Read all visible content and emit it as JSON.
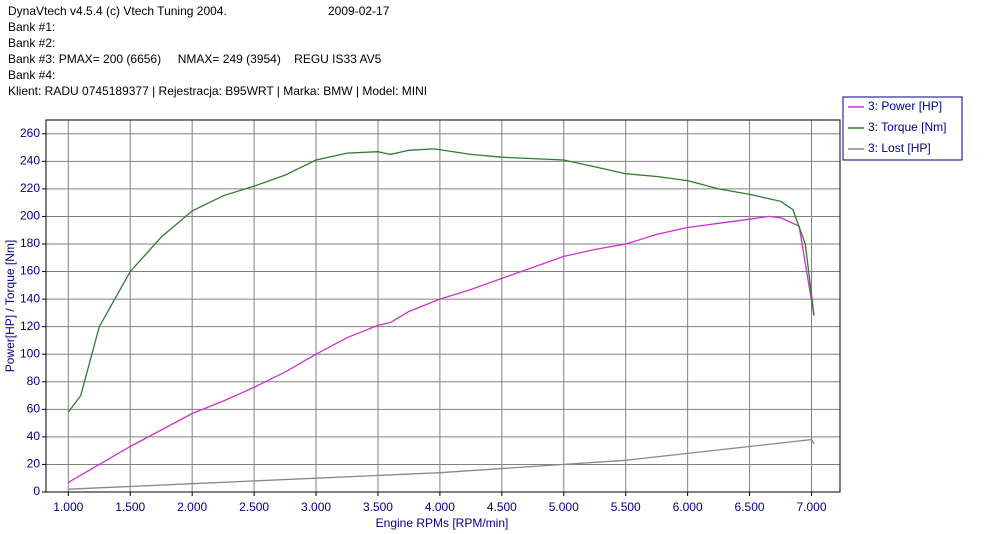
{
  "header": {
    "title": "DynaVtech v4.5.4 (c) Vtech Tuning 2004.",
    "date": "2009-02-17",
    "lines": [
      "Bank #1:",
      "Bank #2:",
      "Bank #3: PMAX= 200 (6656)     NMAX= 249 (3954)    REGU IS33 AV5",
      "Bank #4:",
      "Klient: RADU 0745189377 | Rejestracja: B95WRT | Marka: BMW | Model: MINI"
    ]
  },
  "chart_data": {
    "type": "line",
    "x_label": "Engine RPMs [RPM/min]",
    "y_label": "Power[HP] / Torque [Nm]",
    "xlim": [
      820,
      7230
    ],
    "ylim": [
      0,
      270
    ],
    "xticks": [
      {
        "value": 1000,
        "label": "1.000"
      },
      {
        "value": 1500,
        "label": "1.500"
      },
      {
        "value": 2000,
        "label": "2.000"
      },
      {
        "value": 2500,
        "label": "2.500"
      },
      {
        "value": 3000,
        "label": "3.000"
      },
      {
        "value": 3500,
        "label": "3.500"
      },
      {
        "value": 4000,
        "label": "4.000"
      },
      {
        "value": 4500,
        "label": "4.500"
      },
      {
        "value": 5000,
        "label": "5.000"
      },
      {
        "value": 5500,
        "label": "5.500"
      },
      {
        "value": 6000,
        "label": "6.000"
      },
      {
        "value": 6500,
        "label": "6.500"
      },
      {
        "value": 7000,
        "label": "7.000"
      }
    ],
    "yticks": [
      0,
      20,
      40,
      60,
      80,
      100,
      120,
      140,
      160,
      180,
      200,
      220,
      240,
      260
    ],
    "grid": true,
    "legend": "top-right",
    "series": [
      {
        "name": "3: Power [HP]",
        "color": "#cc33cc",
        "x": [
          1000,
          1250,
          1500,
          1750,
          2000,
          2250,
          2500,
          2750,
          3000,
          3250,
          3500,
          3600,
          3750,
          4000,
          4250,
          4500,
          4750,
          5000,
          5250,
          5500,
          5750,
          6000,
          6250,
          6500,
          6656,
          6750,
          6900,
          7020
        ],
        "values": [
          7,
          20,
          33,
          45,
          57,
          66,
          76,
          87,
          100,
          112,
          121,
          123,
          131,
          140,
          147,
          155,
          163,
          171,
          176,
          180,
          187,
          192,
          195,
          198,
          200,
          199,
          193,
          128
        ]
      },
      {
        "name": "3: Torque [Nm]",
        "color": "#2e7d2e",
        "x": [
          1000,
          1100,
          1250,
          1500,
          1750,
          2000,
          2250,
          2500,
          2750,
          3000,
          3250,
          3500,
          3600,
          3750,
          3954,
          4250,
          4500,
          4750,
          5000,
          5250,
          5500,
          5750,
          6000,
          6250,
          6500,
          6750,
          6850,
          6950,
          7020
        ],
        "values": [
          58,
          70,
          120,
          160,
          185,
          204,
          215,
          222,
          230,
          241,
          246,
          247,
          245,
          248,
          249,
          245,
          243,
          242,
          241,
          236,
          231,
          229,
          226,
          220,
          216,
          211,
          205,
          180,
          128
        ]
      },
      {
        "name": "3: Lost [HP]",
        "color": "#888888",
        "x": [
          1000,
          2000,
          3000,
          4000,
          5000,
          5500,
          6000,
          6500,
          7000,
          7020
        ],
        "values": [
          2,
          6,
          10,
          14,
          20,
          23,
          28,
          33,
          38,
          35
        ]
      }
    ]
  }
}
